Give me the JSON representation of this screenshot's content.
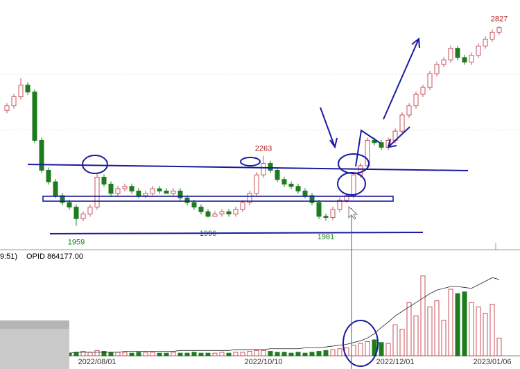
{
  "chart_data": {
    "type": "candlestick",
    "categories": [
      null,
      null,
      null,
      null,
      null,
      null,
      null,
      null,
      null,
      null,
      null,
      null,
      null,
      "2022/08/01",
      null,
      null,
      null,
      null,
      null,
      null,
      null,
      null,
      null,
      null,
      null,
      null,
      null,
      null,
      null,
      null,
      null,
      null,
      null,
      null,
      null,
      null,
      null,
      "2022/10/10",
      null,
      null,
      null,
      null,
      null,
      null,
      null,
      null,
      null,
      null,
      null,
      null,
      null,
      null,
      null,
      null,
      null,
      null,
      "2022/12/01",
      null,
      null,
      null,
      null,
      null,
      null,
      null,
      null,
      null,
      null,
      null,
      null,
      null,
      "2023/01/06",
      null
    ],
    "open": [
      2460,
      2480,
      2520,
      2570,
      2540,
      2330,
      2200,
      2150,
      2090,
      2060,
      2040,
      1990,
      2010,
      2040,
      2170,
      2140,
      2100,
      2120,
      2130,
      2110,
      2090,
      2100,
      2120,
      2110,
      2100,
      2110,
      2080,
      2060,
      2040,
      2020,
      2000,
      2010,
      2020,
      2010,
      2030,
      2060,
      2100,
      2180,
      2230,
      2200,
      2160,
      2140,
      2130,
      2110,
      2090,
      2060,
      2000,
      1995,
      2030,
      2070,
      2090,
      2180,
      2220,
      2330,
      2320,
      2300,
      2330,
      2370,
      2440,
      2480,
      2530,
      2560,
      2620,
      2660,
      2680,
      2730,
      2690,
      2670,
      2700,
      2740,
      2770,
      2800
    ],
    "high": [
      2492,
      2532,
      2600,
      2582,
      2552,
      2342,
      2212,
      2162,
      2102,
      2072,
      2052,
      2022,
      2052,
      2187,
      2182,
      2152,
      2132,
      2142,
      2142,
      2122,
      2112,
      2132,
      2132,
      2122,
      2122,
      2122,
      2092,
      2072,
      2052,
      2032,
      2022,
      2032,
      2032,
      2042,
      2072,
      2112,
      2192,
      2263,
      2242,
      2212,
      2172,
      2152,
      2142,
      2122,
      2102,
      2072,
      2012,
      2042,
      2082,
      2102,
      2192,
      2232,
      2342,
      2342,
      2332,
      2342,
      2382,
      2452,
      2492,
      2542,
      2572,
      2632,
      2672,
      2692,
      2742,
      2742,
      2702,
      2712,
      2752,
      2782,
      2812,
      2827
    ],
    "low": [
      2448,
      2468,
      2508,
      2528,
      2318,
      2188,
      2138,
      2078,
      2048,
      2028,
      1959,
      1978,
      1998,
      2028,
      2128,
      2088,
      2088,
      2108,
      2098,
      2078,
      2078,
      2088,
      2098,
      2098,
      2088,
      2068,
      2048,
      2028,
      2008,
      1996,
      1998,
      1998,
      1998,
      1998,
      2018,
      2048,
      2088,
      2168,
      2188,
      2148,
      2128,
      2118,
      2098,
      2078,
      2048,
      1988,
      1981,
      1983,
      2018,
      2058,
      2078,
      2168,
      2208,
      2308,
      2288,
      2288,
      2318,
      2358,
      2428,
      2468,
      2518,
      2548,
      2608,
      2648,
      2668,
      2678,
      2658,
      2658,
      2688,
      2728,
      2758,
      2788
    ],
    "close": [
      2480,
      2520,
      2570,
      2540,
      2330,
      2200,
      2150,
      2090,
      2060,
      2040,
      1990,
      2010,
      2040,
      2170,
      2140,
      2100,
      2120,
      2130,
      2110,
      2090,
      2100,
      2120,
      2110,
      2100,
      2110,
      2080,
      2060,
      2040,
      2020,
      2000,
      2010,
      2020,
      2010,
      2030,
      2060,
      2100,
      2180,
      2230,
      2200,
      2160,
      2140,
      2130,
      2110,
      2090,
      2060,
      2000,
      1995,
      2030,
      2070,
      2090,
      2180,
      2220,
      2330,
      2320,
      2300,
      2330,
      2370,
      2440,
      2480,
      2530,
      2560,
      2620,
      2660,
      2680,
      2730,
      2690,
      2670,
      2700,
      2740,
      2770,
      2800,
      2820
    ],
    "ylim": [
      1870,
      2940
    ],
    "up_color": "#c8505a",
    "down_color": "#1e7b1e",
    "low_labels": [
      1959,
      1996,
      1981
    ],
    "high_labels": [
      2263,
      2827
    ],
    "low_label_color": "#1e7b1e",
    "high_label_color": "#b01a1a",
    "volume": [
      4,
      5,
      6,
      5,
      7,
      6,
      5,
      4,
      4,
      3,
      4,
      5,
      4,
      6,
      5,
      4,
      4,
      4,
      3,
      4,
      4,
      4,
      3,
      3,
      4,
      3,
      3,
      4,
      3,
      3,
      3,
      4,
      3,
      4,
      4,
      5,
      6,
      6,
      5,
      4,
      4,
      3,
      4,
      3,
      4,
      5,
      6,
      7,
      8,
      9,
      12,
      14,
      16,
      18,
      15,
      14,
      35,
      30,
      60,
      45,
      90,
      55,
      62,
      40,
      75,
      70,
      72,
      60,
      55,
      48,
      58,
      20
    ],
    "opid_line": [
      2,
      2,
      2,
      2,
      3,
      3,
      3,
      3,
      3,
      3,
      4,
      4,
      4,
      4,
      4,
      4,
      4,
      5,
      5,
      5,
      5,
      5,
      5,
      5,
      5,
      6,
      6,
      6,
      6,
      6,
      6,
      6,
      6,
      7,
      7,
      7,
      7,
      7,
      8,
      8,
      8,
      8,
      8,
      9,
      9,
      9,
      10,
      11,
      12,
      13,
      15,
      17,
      20,
      25,
      32,
      38,
      45,
      50,
      55,
      60,
      65,
      70,
      74,
      76,
      78,
      78,
      77,
      76,
      80,
      84,
      88,
      86
    ],
    "vlim": [
      0,
      100
    ],
    "volume_header": [
      "9:51)",
      "OPID 864177.00"
    ]
  }
}
